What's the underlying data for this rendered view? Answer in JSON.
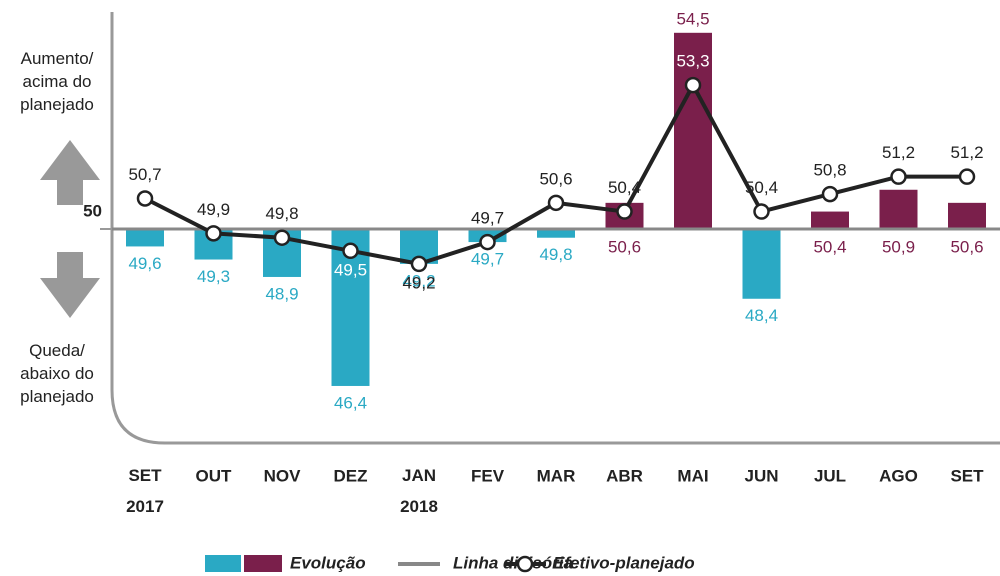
{
  "chart_data": {
    "type": "bar_line",
    "categories": [
      "SET 2017",
      "OUT",
      "NOV",
      "DEZ",
      "JAN 2018",
      "FEV",
      "MAR",
      "ABR",
      "MAI",
      "JUN",
      "JUL",
      "AGO",
      "SET"
    ],
    "series": [
      {
        "name": "Evolução",
        "type": "bar",
        "colors": {
          "below": "#2aa9c4",
          "above": "#7a1f4b"
        },
        "values": [
          49.6,
          49.3,
          48.9,
          46.4,
          49.2,
          49.7,
          49.8,
          50.6,
          54.5,
          48.4,
          50.4,
          50.9,
          50.6
        ],
        "value_labels": [
          "49,6",
          "49,3",
          "48,9",
          "46,4",
          "49,2",
          "49,7",
          "49,8",
          "50,6",
          "54,5",
          "48,4",
          "50,4",
          "50,9",
          "50,6"
        ]
      },
      {
        "name": "Efetivo-planejado",
        "type": "line",
        "color": "#222",
        "values": [
          50.7,
          49.9,
          49.8,
          49.5,
          49.2,
          49.7,
          50.6,
          50.4,
          53.3,
          50.4,
          50.8,
          51.2,
          51.2
        ],
        "value_labels": [
          "50,7",
          "49,9",
          "49,8",
          "49,5",
          "49,2",
          "49,7",
          "50,6",
          "50,4",
          "53,3",
          "50,4",
          "50,8",
          "51,2",
          "51,2"
        ]
      }
    ],
    "divider": {
      "name": "Linha divisória",
      "value": 50,
      "color": "#888"
    },
    "ylim": [
      45,
      55
    ],
    "yticks": [
      50
    ],
    "annotations": {
      "up": "Aumento/ acima do planejado",
      "down": "Queda/ abaixo do planejado"
    }
  }
}
